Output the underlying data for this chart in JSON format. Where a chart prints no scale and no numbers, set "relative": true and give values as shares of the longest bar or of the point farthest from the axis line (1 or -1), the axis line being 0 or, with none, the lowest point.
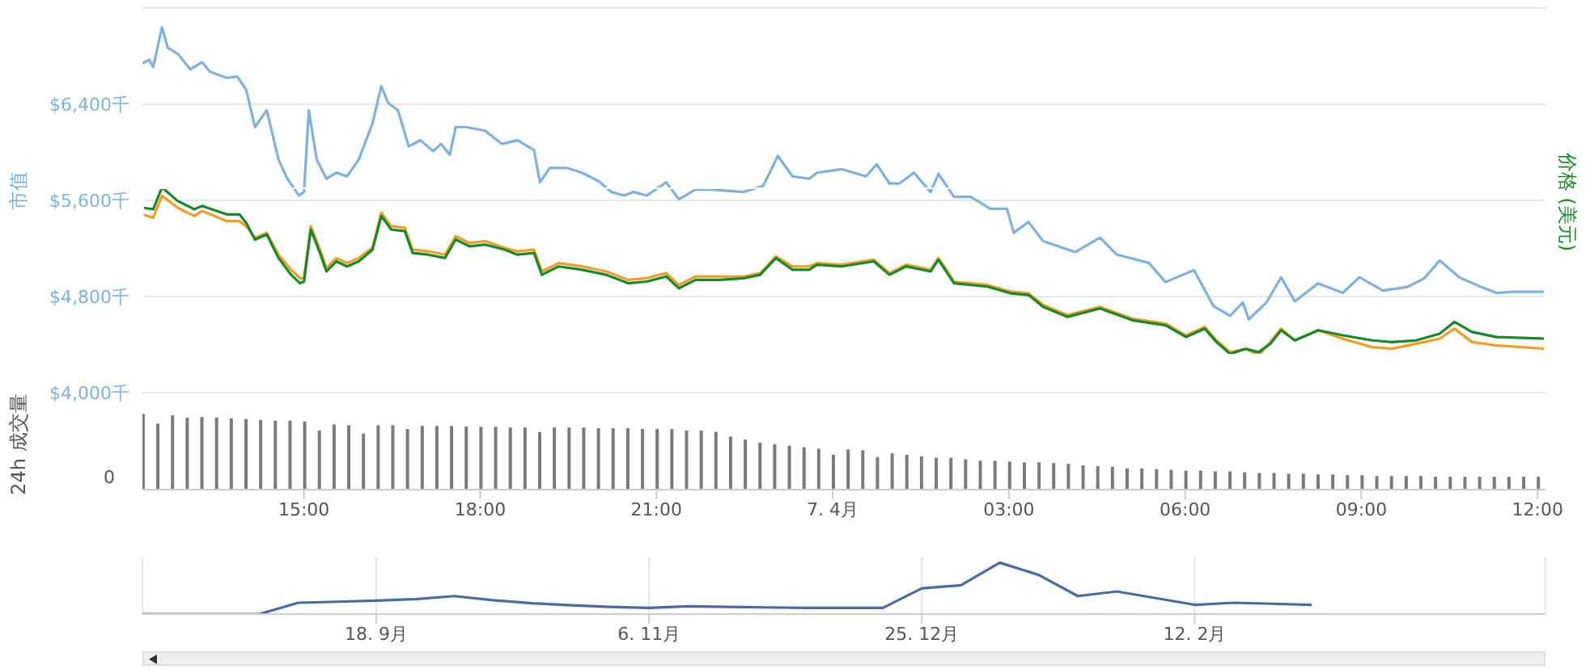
{
  "chart_data": [
    {
      "type": "line",
      "ylabel": "市值",
      "xlim": [
        "--04-06T12:15",
        "--04-07T12:08"
      ],
      "ylim": [
        4000,
        7200
      ],
      "yticks": [
        {
          "value": 4000,
          "label": "$4,000千"
        },
        {
          "value": 4800,
          "label": "$4,800千"
        },
        {
          "value": 5600,
          "label": "$5,600千"
        },
        {
          "value": 6400,
          "label": "$6,400千"
        },
        {
          "value": 7200,
          "label": null
        }
      ],
      "grid": "y",
      "tick_labels": "y",
      "marker": "none",
      "x": [
        "--04-06T12:15",
        "--04-06T12:22",
        "--04-06T12:26",
        "--04-06T12:35",
        "--04-06T12:41",
        "--04-06T12:51",
        "--04-06T13:04",
        "--04-06T13:16",
        "--04-06T13:24",
        "--04-06T13:41",
        "--04-06T13:52",
        "--04-06T14:01",
        "--04-06T14:10",
        "--04-06T14:22",
        "--04-06T14:34",
        "--04-06T14:43",
        "--04-06T14:55",
        "--04-06T15:00",
        "--04-06T15:05",
        "--04-06T15:13",
        "--04-06T15:23",
        "--04-06T15:33",
        "--04-06T15:44",
        "--04-06T15:56",
        "--04-06T16:10",
        "--04-06T16:19",
        "--04-06T16:26",
        "--04-06T16:36",
        "--04-06T16:47",
        "--04-06T16:59",
        "--04-06T17:12",
        "--04-06T17:20",
        "--04-06T17:29",
        "--04-06T17:35",
        "--04-06T17:45",
        "--04-06T18:05",
        "--04-06T18:22",
        "--04-06T18:38",
        "--04-06T18:55",
        "--04-06T19:01",
        "--04-06T19:11",
        "--04-06T19:28",
        "--04-06T19:44",
        "--04-06T20:01",
        "--04-06T20:14",
        "--04-06T20:27",
        "--04-06T20:37",
        "--04-06T20:50",
        "--04-06T21:10",
        "--04-06T21:23",
        "--04-06T21:40",
        "--04-06T21:56",
        "--04-06T22:29",
        "--04-06T22:49",
        "--04-06T23:04",
        "--04-06T23:19",
        "--04-06T23:36",
        "--04-06T23:44",
        "--04-07T00:09",
        "--04-07T00:34",
        "--04-07T00:45",
        "--04-07T00:58",
        "--04-07T01:08",
        "--04-07T01:23",
        "--04-07T01:40",
        "--04-07T01:48",
        "--04-07T02:04",
        "--04-07T02:21",
        "--04-07T02:41",
        "--04-07T02:58",
        "--04-07T03:05",
        "--04-07T03:20",
        "--04-07T03:35",
        "--04-07T04:08",
        "--04-07T04:33",
        "--04-07T04:50",
        "--04-07T05:23",
        "--04-07T05:40",
        "--04-07T06:09",
        "--04-07T06:29",
        "--04-07T06:46",
        "--04-07T06:59",
        "--04-07T07:05",
        "--04-07T07:23",
        "--04-07T07:38",
        "--04-07T07:52",
        "--04-07T08:16",
        "--04-07T08:41",
        "--04-07T08:58",
        "--04-07T09:22",
        "--04-07T09:47",
        "--04-07T10:04",
        "--04-07T10:20",
        "--04-07T10:40",
        "--04-07T11:02",
        "--04-07T11:18",
        "--04-07T11:35",
        "--04-07T12:08"
      ],
      "series": [
        {
          "color": "#7fb0df",
          "values": [
            6740,
            6770,
            6710,
            7040,
            6870,
            6820,
            6690,
            6750,
            6670,
            6620,
            6630,
            6520,
            6210,
            6350,
            5940,
            5780,
            5640,
            5670,
            6350,
            5940,
            5780,
            5830,
            5800,
            5940,
            6240,
            6550,
            6410,
            6350,
            6050,
            6100,
            6010,
            6070,
            5980,
            6210,
            6210,
            6180,
            6070,
            6100,
            6020,
            5750,
            5870,
            5870,
            5830,
            5760,
            5670,
            5640,
            5670,
            5640,
            5750,
            5610,
            5690,
            5690,
            5670,
            5720,
            5970,
            5800,
            5780,
            5830,
            5860,
            5800,
            5900,
            5740,
            5740,
            5830,
            5670,
            5820,
            5630,
            5630,
            5530,
            5530,
            5330,
            5420,
            5260,
            5170,
            5290,
            5150,
            5080,
            4920,
            5020,
            4720,
            4640,
            4750,
            4610,
            4750,
            4960,
            4760,
            4910,
            4830,
            4960,
            4850,
            4880,
            4950,
            5100,
            4960,
            4880,
            4830,
            4840,
            4840
          ]
        }
      ]
    },
    {
      "type": "line",
      "y2label": "价格 (美元)",
      "relative": true,
      "tick_labels": false,
      "marker": "none",
      "xlim": [
        "--04-06T12:15",
        "--04-07T12:08"
      ],
      "x": [
        "--04-06T12:15",
        "--04-06T12:26",
        "--04-06T12:35",
        "--04-06T12:51",
        "--04-06T13:08",
        "--04-06T13:16",
        "--04-06T13:41",
        "--04-06T13:54",
        "--04-06T14:01",
        "--04-06T14:10",
        "--04-06T14:22",
        "--04-06T14:34",
        "--04-06T14:47",
        "--04-06T14:56",
        "--04-06T15:00",
        "--04-06T15:07",
        "--04-06T15:17",
        "--04-06T15:23",
        "--04-06T15:33",
        "--04-06T15:44",
        "--04-06T15:56",
        "--04-06T16:10",
        "--04-06T16:19",
        "--04-06T16:29",
        "--04-06T16:43",
        "--04-06T16:51",
        "--04-06T17:07",
        "--04-06T17:24",
        "--04-06T17:35",
        "--04-06T17:49",
        "--04-06T18:05",
        "--04-06T18:25",
        "--04-06T18:38",
        "--04-06T18:55",
        "--04-06T19:03",
        "--04-06T19:20",
        "--04-06T19:44",
        "--04-06T20:09",
        "--04-06T20:31",
        "--04-06T20:50",
        "--04-06T21:10",
        "--04-06T21:23",
        "--04-06T21:40",
        "--04-06T22:05",
        "--04-06T22:29",
        "--04-06T22:46",
        "--04-06T23:02",
        "--04-06T23:19",
        "--04-06T23:36",
        "--04-06T23:44",
        "--04-07T00:09",
        "--04-07T00:42",
        "--04-07T00:58",
        "--04-07T01:15",
        "--04-07T01:40",
        "--04-07T01:48",
        "--04-07T02:04",
        "--04-07T02:38",
        "--04-07T03:02",
        "--04-07T03:20",
        "--04-07T03:35",
        "--04-07T04:00",
        "--04-07T04:33",
        "--04-07T05:06",
        "--04-07T05:40",
        "--04-07T06:01",
        "--04-07T06:20",
        "--04-07T06:32",
        "--04-07T06:46",
        "--04-07T07:02",
        "--04-07T07:15",
        "--04-07T07:27",
        "--04-07T07:38",
        "--04-07T07:52",
        "--04-07T08:16",
        "--04-07T08:41",
        "--04-07T09:11",
        "--04-07T09:31",
        "--04-07T09:56",
        "--04-07T10:20",
        "--04-07T10:35",
        "--04-07T10:53",
        "--04-07T11:18",
        "--04-07T12:08"
      ],
      "series": [
        {
          "color": "#f39c25",
          "values": [
            0.84,
            0.82,
            0.95,
            0.88,
            0.83,
            0.86,
            0.8,
            0.8,
            0.77,
            0.7,
            0.73,
            0.6,
            0.51,
            0.46,
            0.46,
            0.77,
            0.62,
            0.52,
            0.58,
            0.55,
            0.58,
            0.64,
            0.85,
            0.77,
            0.76,
            0.63,
            0.62,
            0.6,
            0.71,
            0.67,
            0.68,
            0.64,
            0.62,
            0.63,
            0.5,
            0.55,
            0.53,
            0.5,
            0.45,
            0.46,
            0.49,
            0.42,
            0.47,
            0.47,
            0.47,
            0.49,
            0.59,
            0.53,
            0.53,
            0.55,
            0.54,
            0.57,
            0.49,
            0.54,
            0.51,
            0.58,
            0.44,
            0.42,
            0.38,
            0.37,
            0.3,
            0.24,
            0.29,
            0.22,
            0.19,
            0.12,
            0.17,
            0.09,
            0.02,
            0.04,
            0,
            0.08,
            0.16,
            0.09,
            0.15,
            0.1,
            0.05,
            0.04,
            0.07,
            0.1,
            0.16,
            0.08,
            0.06,
            0.04
          ]
        },
        {
          "color": "#16892c",
          "values": [
            0.88,
            0.87,
            1.0,
            0.92,
            0.87,
            0.89,
            0.84,
            0.84,
            0.79,
            0.69,
            0.72,
            0.58,
            0.48,
            0.43,
            0.44,
            0.75,
            0.6,
            0.5,
            0.56,
            0.53,
            0.56,
            0.63,
            0.83,
            0.75,
            0.74,
            0.61,
            0.6,
            0.58,
            0.69,
            0.65,
            0.66,
            0.63,
            0.6,
            0.61,
            0.48,
            0.53,
            0.51,
            0.48,
            0.43,
            0.44,
            0.47,
            0.4,
            0.45,
            0.45,
            0.46,
            0.48,
            0.58,
            0.51,
            0.51,
            0.54,
            0.53,
            0.56,
            0.48,
            0.53,
            0.5,
            0.57,
            0.43,
            0.41,
            0.37,
            0.36,
            0.29,
            0.23,
            0.28,
            0.21,
            0.18,
            0.11,
            0.16,
            0.08,
            0.01,
            0.04,
            0.02,
            0.07,
            0.15,
            0.09,
            0.15,
            0.12,
            0.09,
            0.08,
            0.09,
            0.13,
            0.2,
            0.14,
            0.11,
            0.1
          ]
        }
      ]
    },
    {
      "type": "bar",
      "ylabel": "24h 成交量",
      "relative": true,
      "annotations": [
        "0"
      ],
      "xlim": [
        "--04-06T12:15",
        "--04-07T12:08"
      ],
      "xticks": [
        {
          "value": "--04-06T15:00",
          "label": "15:00"
        },
        {
          "value": "--04-06T18:00",
          "label": "18:00"
        },
        {
          "value": "--04-06T21:00",
          "label": "21:00"
        },
        {
          "value": "--04-07T00:00",
          "label": "7. 4月"
        },
        {
          "value": "--04-07T03:00",
          "label": "03:00"
        },
        {
          "value": "--04-07T06:00",
          "label": "06:00"
        },
        {
          "value": "--04-07T09:00",
          "label": "09:00"
        },
        {
          "value": "--04-07T12:00",
          "label": "12:00"
        }
      ],
      "x": [
        "--04-06T12:15",
        "--04-06T12:30",
        "--04-06T12:45",
        "--04-06T13:00",
        "--04-06T13:15",
        "--04-06T13:30",
        "--04-06T13:45",
        "--04-06T14:00",
        "--04-06T14:15",
        "--04-06T14:30",
        "--04-06T14:45",
        "--04-06T15:00",
        "--04-06T15:15",
        "--04-06T15:30",
        "--04-06T15:45",
        "--04-06T16:00",
        "--04-06T16:15",
        "--04-06T16:30",
        "--04-06T16:45",
        "--04-06T17:00",
        "--04-06T17:15",
        "--04-06T17:30",
        "--04-06T17:45",
        "--04-06T18:00",
        "--04-06T18:15",
        "--04-06T18:30",
        "--04-06T18:45",
        "--04-06T19:00",
        "--04-06T19:15",
        "--04-06T19:30",
        "--04-06T19:45",
        "--04-06T20:00",
        "--04-06T20:15",
        "--04-06T20:30",
        "--04-06T20:45",
        "--04-06T21:00",
        "--04-06T21:15",
        "--04-06T21:30",
        "--04-06T21:45",
        "--04-06T22:00",
        "--04-06T22:15",
        "--04-06T22:30",
        "--04-06T22:45",
        "--04-06T23:00",
        "--04-06T23:15",
        "--04-06T23:30",
        "--04-06T23:45",
        "--04-07T00:00",
        "--04-07T00:15",
        "--04-07T00:30",
        "--04-07T00:45",
        "--04-07T01:00",
        "--04-07T01:15",
        "--04-07T01:30",
        "--04-07T01:45",
        "--04-07T02:00",
        "--04-07T02:15",
        "--04-07T02:30",
        "--04-07T02:45",
        "--04-07T03:00",
        "--04-07T03:15",
        "--04-07T03:30",
        "--04-07T03:45",
        "--04-07T04:00",
        "--04-07T04:15",
        "--04-07T04:30",
        "--04-07T04:45",
        "--04-07T05:00",
        "--04-07T05:15",
        "--04-07T05:30",
        "--04-07T05:45",
        "--04-07T06:00",
        "--04-07T06:15",
        "--04-07T06:30",
        "--04-07T06:45",
        "--04-07T07:00",
        "--04-07T07:15",
        "--04-07T07:30",
        "--04-07T07:45",
        "--04-07T08:00",
        "--04-07T08:15",
        "--04-07T08:30",
        "--04-07T08:45",
        "--04-07T09:00",
        "--04-07T09:15",
        "--04-07T09:30",
        "--04-07T09:45",
        "--04-07T10:00",
        "--04-07T10:15",
        "--04-07T10:30",
        "--04-07T10:45",
        "--04-07T11:00",
        "--04-07T11:15",
        "--04-07T11:30",
        "--04-07T11:45",
        "--04-07T12:00"
      ],
      "series": [
        {
          "color": "#7a7a7a",
          "values": [
            1.0,
            0.87,
            0.98,
            0.95,
            0.96,
            0.95,
            0.94,
            0.93,
            0.92,
            0.91,
            0.91,
            0.9,
            0.78,
            0.86,
            0.85,
            0.74,
            0.85,
            0.85,
            0.8,
            0.84,
            0.84,
            0.84,
            0.83,
            0.83,
            0.83,
            0.82,
            0.82,
            0.76,
            0.82,
            0.82,
            0.82,
            0.81,
            0.81,
            0.81,
            0.8,
            0.8,
            0.8,
            0.78,
            0.78,
            0.76,
            0.7,
            0.66,
            0.62,
            0.6,
            0.58,
            0.56,
            0.54,
            0.46,
            0.53,
            0.52,
            0.43,
            0.48,
            0.46,
            0.44,
            0.42,
            0.42,
            0.4,
            0.38,
            0.38,
            0.37,
            0.36,
            0.36,
            0.35,
            0.34,
            0.32,
            0.31,
            0.3,
            0.28,
            0.28,
            0.27,
            0.26,
            0.25,
            0.25,
            0.24,
            0.24,
            0.23,
            0.22,
            0.22,
            0.21,
            0.21,
            0.2,
            0.2,
            0.19,
            0.19,
            0.18,
            0.18,
            0.18,
            0.18,
            0.17,
            0.17,
            0.17,
            0.17,
            0.17,
            0.17,
            0.17,
            0.17
          ]
        }
      ]
    },
    {
      "type": "line",
      "relative": true,
      "grid": "x",
      "marker": "none",
      "categories": [
        null,
        null,
        null,
        null,
        null,
        null,
        "18. 9月",
        null,
        null,
        null,
        null,
        null,
        null,
        "6. 11月",
        null,
        null,
        null,
        null,
        null,
        null,
        "25. 12月",
        null,
        null,
        null,
        null,
        null,
        null,
        "12. 2月",
        null,
        null,
        null,
        null,
        null,
        null,
        null,
        null,
        null
      ],
      "series": [
        {
          "color": "#4a6aa5",
          "values": [
            0,
            0,
            0,
            0,
            0.22,
            0.24,
            0.26,
            0.29,
            0.35,
            0.27,
            0.21,
            0.17,
            0.14,
            0.12,
            0.15,
            0.14,
            0.13,
            0.12,
            0.12,
            0.12,
            0.5,
            0.56,
            1.0,
            0.76,
            0.35,
            0.44,
            0.31,
            0.18,
            0.22,
            0.2,
            0.18,
            null,
            null,
            null,
            null,
            null,
            null
          ]
        }
      ]
    }
  ]
}
